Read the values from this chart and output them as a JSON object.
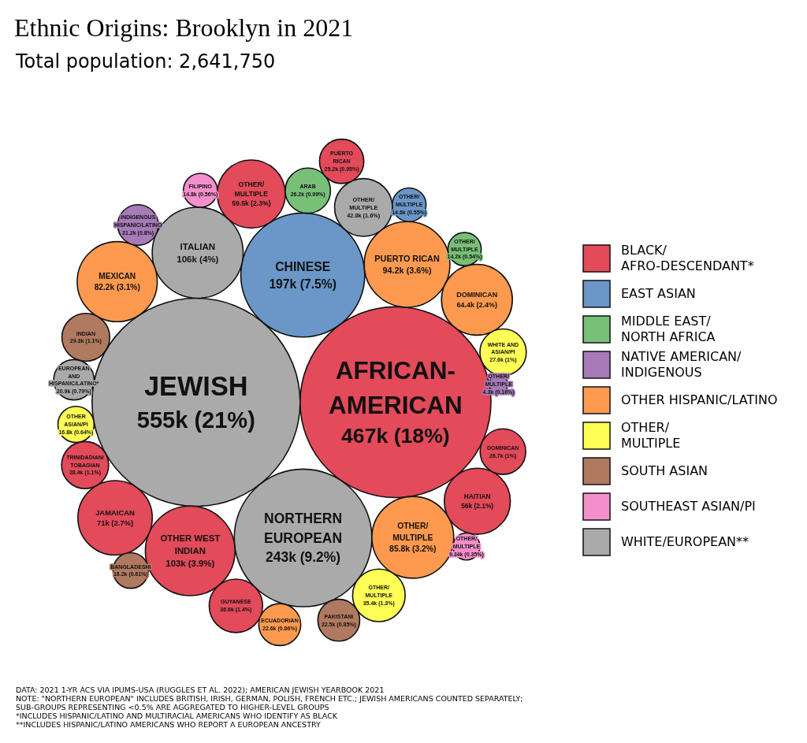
{
  "chart_data": {
    "type": "other",
    "title": "Ethnic Origins: Brooklyn in 2021",
    "subtitle": "Total population: 2,641,750",
    "categories": [
      "JEWISH",
      "AFRICAN-AMERICAN",
      "NORTHERN EUROPEAN",
      "CHINESE",
      "ITALIAN",
      "OTHER WEST INDIAN",
      "PUERTO RICAN",
      "OTHER/ MULTIPLE",
      "MEXICAN",
      "JAMAICAN",
      "DOMINICAN",
      "OTHER/ MULTIPLE",
      "HAITIAN",
      "OTHER/ MULTIPLE",
      "GUYANESE",
      "OTHER/ MULTIPLE",
      "INDIAN",
      "TRINIDADIAN/ TOBAGIAN",
      "WHITE AND ASIAN/PI",
      "DOMINICAN",
      "ARAB",
      "PUERTO RICAN",
      "ECUADORIAN",
      "PAKISTANI",
      "INDIGENOUS HISPANIC/LATINO",
      "EUROPEAN AND HISPANIC/LATINO*",
      "OTHER ASIAN/PI",
      "BANGLADESHI",
      "FILIPINO",
      "OTHER/ MULTIPLE",
      "OTHER/ MULTIPLE",
      "OTHER/ MULTIPLE",
      "OTHER/ MULTIPLE",
      null
    ],
    "legend": "right",
    "series": [
      {
        "name": "BLACK/ AFRO-DESCENDANT*",
        "color": "#e34a5a",
        "values": [
          null,
          467000,
          null,
          null,
          null,
          103000,
          null,
          null,
          null,
          71000,
          null,
          59500,
          56000,
          null,
          36600,
          null,
          null,
          28400,
          null,
          26700,
          null,
          25200,
          null,
          null,
          null,
          null,
          null,
          null,
          null,
          null,
          null,
          null,
          null,
          null
        ],
        "value_labels": [
          null,
          "467k (18%)",
          null,
          null,
          null,
          "103k (3.9%)",
          null,
          null,
          null,
          "71k (2.7%)",
          null,
          "59.5k (2.3%)",
          "56k (2.1%)",
          null,
          "36.6k (1.4%)",
          null,
          null,
          "28.4k (1.1%)",
          null,
          "26.7k (1%)",
          null,
          "25.2k (0.95%)",
          null,
          null,
          null,
          null,
          null,
          null,
          null,
          null,
          null,
          null,
          null,
          null
        ]
      },
      {
        "name": "EAST ASIAN",
        "color": "#6a96c8",
        "values": [
          null,
          null,
          null,
          197000,
          null,
          null,
          null,
          null,
          null,
          null,
          null,
          null,
          null,
          null,
          null,
          null,
          null,
          null,
          null,
          null,
          null,
          null,
          null,
          null,
          null,
          null,
          null,
          null,
          null,
          14600,
          null,
          null,
          null,
          null
        ],
        "value_labels": [
          null,
          null,
          null,
          "197k (7.5%)",
          null,
          null,
          null,
          null,
          null,
          null,
          null,
          null,
          null,
          null,
          null,
          null,
          null,
          null,
          null,
          null,
          null,
          null,
          null,
          null,
          null,
          null,
          null,
          null,
          null,
          "14.6k (0.55%)",
          null,
          null,
          null,
          null
        ]
      },
      {
        "name": "MIDDLE EAST/ NORTH AFRICA",
        "color": "#78bf78",
        "values": [
          null,
          null,
          null,
          null,
          null,
          null,
          null,
          null,
          null,
          null,
          null,
          null,
          null,
          null,
          null,
          null,
          null,
          null,
          null,
          null,
          26200,
          null,
          null,
          null,
          null,
          null,
          null,
          null,
          null,
          null,
          14200,
          null,
          null,
          null
        ],
        "value_labels": [
          null,
          null,
          null,
          null,
          null,
          null,
          null,
          null,
          null,
          null,
          null,
          null,
          null,
          null,
          null,
          null,
          null,
          null,
          null,
          null,
          "26.2k (0.99%)",
          null,
          null,
          null,
          null,
          null,
          null,
          null,
          null,
          null,
          "14.2k (0.54%)",
          null,
          null,
          null
        ]
      },
      {
        "name": "NATIVE AMERICAN/ INDIGENOUS",
        "color": "#a77ab8",
        "values": [
          null,
          null,
          null,
          null,
          null,
          null,
          null,
          null,
          null,
          null,
          null,
          null,
          null,
          null,
          null,
          null,
          null,
          null,
          null,
          null,
          null,
          null,
          null,
          null,
          21200,
          null,
          null,
          null,
          null,
          null,
          null,
          null,
          4300,
          null
        ],
        "value_labels": [
          null,
          null,
          null,
          null,
          null,
          null,
          null,
          null,
          null,
          null,
          null,
          null,
          null,
          null,
          null,
          null,
          null,
          null,
          null,
          null,
          null,
          null,
          null,
          null,
          "21.2k (0.8%)",
          null,
          null,
          null,
          null,
          null,
          null,
          null,
          "4.3k (0.16%)",
          null
        ]
      },
      {
        "name": "OTHER HISPANIC/LATINO",
        "color": "#fd9a4f",
        "values": [
          null,
          null,
          null,
          null,
          null,
          null,
          94200,
          85800,
          82200,
          null,
          64400,
          null,
          null,
          null,
          null,
          null,
          null,
          null,
          null,
          null,
          null,
          null,
          22600,
          null,
          null,
          null,
          null,
          null,
          null,
          null,
          null,
          null,
          null,
          null
        ],
        "value_labels": [
          null,
          null,
          null,
          null,
          null,
          null,
          "94.2k (3.6%)",
          "85.8k (3.2%)",
          "82.2k (3.1%)",
          null,
          "64.4k (2.4%)",
          null,
          null,
          null,
          null,
          null,
          null,
          null,
          null,
          null,
          null,
          null,
          "22.6k (0.86%)",
          null,
          null,
          null,
          null,
          null,
          null,
          null,
          null,
          null,
          null,
          null
        ]
      },
      {
        "name": "OTHER/ MULTIPLE",
        "color": "#ffff55",
        "values": [
          null,
          null,
          null,
          null,
          null,
          null,
          null,
          null,
          null,
          null,
          null,
          null,
          null,
          null,
          null,
          35400,
          null,
          null,
          27600,
          null,
          null,
          null,
          null,
          null,
          null,
          null,
          16800,
          null,
          null,
          null,
          null,
          null,
          null,
          null
        ],
        "value_labels": [
          null,
          null,
          null,
          null,
          null,
          null,
          null,
          null,
          null,
          null,
          null,
          null,
          null,
          null,
          null,
          "35.4k (1.3%)",
          null,
          null,
          "27.6k (1%)",
          null,
          null,
          null,
          null,
          null,
          null,
          null,
          "16.8k (0.64%)",
          null,
          null,
          null,
          null,
          null,
          null,
          null
        ]
      },
      {
        "name": "SOUTH ASIAN",
        "color": "#b07a60",
        "values": [
          null,
          null,
          null,
          null,
          null,
          null,
          null,
          null,
          null,
          null,
          null,
          null,
          null,
          null,
          null,
          null,
          29300,
          null,
          null,
          null,
          null,
          null,
          null,
          22500,
          null,
          null,
          null,
          16200,
          null,
          null,
          null,
          null,
          null,
          null
        ],
        "value_labels": [
          null,
          null,
          null,
          null,
          null,
          null,
          null,
          null,
          null,
          null,
          null,
          null,
          null,
          null,
          null,
          null,
          "29.3k (1.1%)",
          null,
          null,
          null,
          null,
          null,
          null,
          "22.5k (0.85%)",
          null,
          null,
          null,
          "16.2k (0.61%)",
          null,
          null,
          null,
          null,
          null,
          null
        ]
      },
      {
        "name": "SOUTHEAST ASIAN/PI",
        "color": "#f58fcb",
        "values": [
          null,
          null,
          null,
          null,
          null,
          null,
          null,
          null,
          null,
          null,
          null,
          null,
          null,
          null,
          null,
          null,
          null,
          null,
          null,
          null,
          null,
          null,
          null,
          null,
          null,
          null,
          null,
          null,
          14800,
          null,
          null,
          9340,
          null,
          null
        ],
        "value_labels": [
          null,
          null,
          null,
          null,
          null,
          null,
          null,
          null,
          null,
          null,
          null,
          null,
          null,
          null,
          null,
          null,
          null,
          null,
          null,
          null,
          null,
          null,
          null,
          null,
          null,
          null,
          null,
          null,
          "14.8k (0.56%)",
          null,
          null,
          "9.34k (0.35%)",
          null,
          null
        ]
      },
      {
        "name": "WHITE/EUROPEAN**",
        "color": "#aaaaaa",
        "values": [
          555000,
          null,
          243000,
          null,
          106000,
          null,
          null,
          null,
          null,
          null,
          null,
          null,
          null,
          42800,
          null,
          null,
          null,
          null,
          null,
          null,
          null,
          null,
          null,
          null,
          null,
          20900,
          null,
          null,
          null,
          null,
          null,
          null,
          null,
          null
        ],
        "value_labels": [
          "555k (21%)",
          null,
          "243k (9.2%)",
          null,
          "106k (4%)",
          null,
          null,
          null,
          null,
          null,
          null,
          null,
          null,
          "42.8k (1.6%)",
          null,
          null,
          null,
          null,
          null,
          null,
          null,
          null,
          null,
          null,
          null,
          "20.9k (0.79%)",
          null,
          null,
          null,
          null,
          null,
          null,
          null,
          null
        ]
      }
    ],
    "annotations": [
      "DATA: 2021 1-YR ACS VIA IPUMS-USA (RUGGLES ET AL. 2022); AMERICAN JEWISH YEARBOOK 2021",
      "NOTE: \"NORTHERN EUROPEAN\" INCLUDES BRITISH, IRISH, GERMAN, POLISH, FRENCH ETC.; JEWISH AMERICANS COUNTED SEPARATELY;",
      "SUB-GROUPS REPRESENTING <0.5% ARE AGGREGATED TO HIGHER-LEVEL GROUPS",
      "*INCLUDES HISPANIC/LATINO AND MULTIRACIAL AMERICANS WHO IDENTIFY AS BLACK",
      "**INCLUDES HISPANIC/LATINO AMERICANS WHO REPORT A EUROPEAN ANCESTRY"
    ]
  }
}
